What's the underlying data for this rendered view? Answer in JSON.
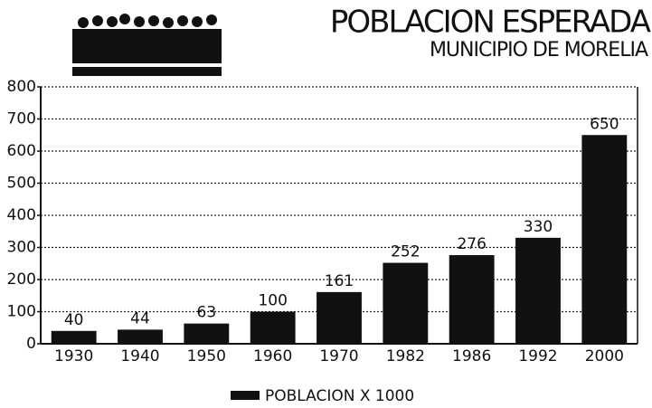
{
  "chart_data": {
    "type": "bar",
    "title": "POBLACION ESPERADA",
    "subtitle": "MUNICIPIO DE MORELIA",
    "categories": [
      "1930",
      "1940",
      "1950",
      "1960",
      "1970",
      "1982",
      "1986",
      "1992",
      "2000"
    ],
    "series": [
      {
        "name": "POBLACION X 1000",
        "color": "#111111",
        "values": [
          40,
          44,
          63,
          100,
          161,
          252,
          276,
          330,
          650
        ]
      }
    ],
    "ylim": [
      0,
      800
    ],
    "yticks": [
      0,
      100,
      200,
      300,
      400,
      500,
      600,
      700,
      800
    ],
    "grid": true,
    "legend": "bottom"
  }
}
